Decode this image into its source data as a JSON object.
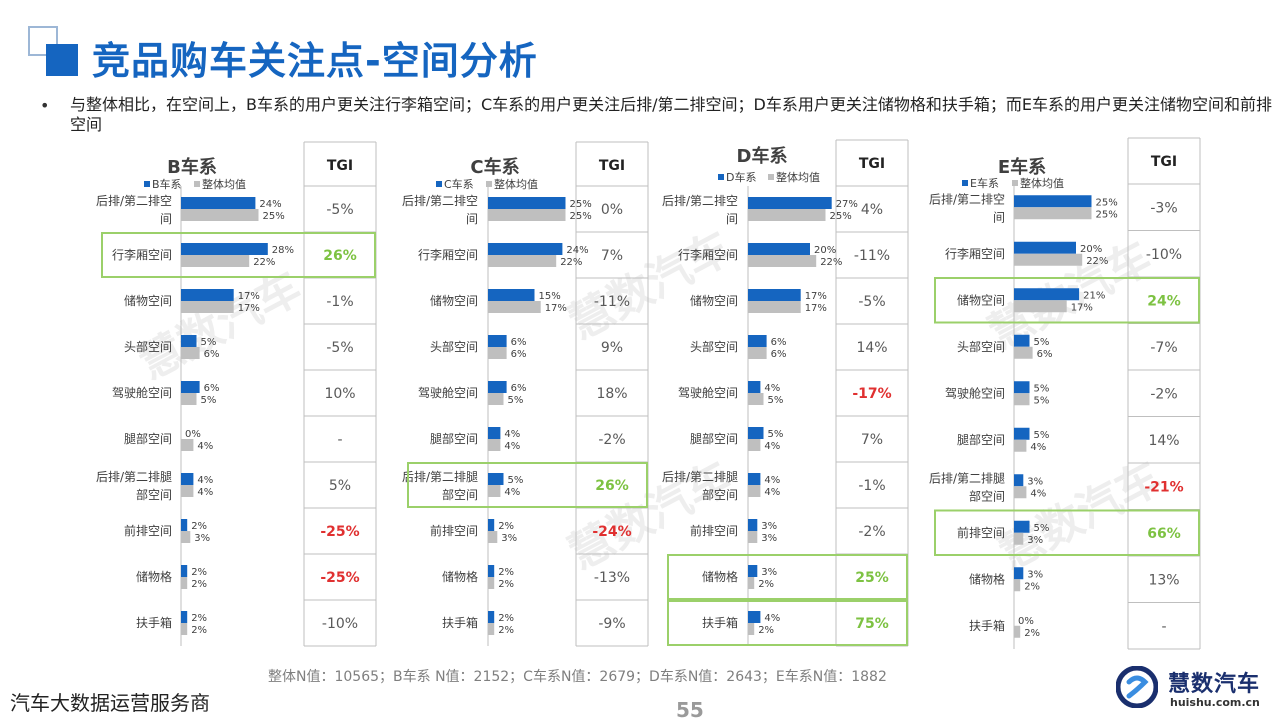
{
  "page": {
    "title": "竞品购车关注点-空间分析",
    "summary": "与整体相比，在空间上，B车系的用户更关注行李箱空间；C车系的用户更关注后排/第二排空间；D车系用户更关注储物格和扶手箱；而E车系的用户更关注储物空间和前排空间",
    "footnote": "整体N值：10565；B车系 N值：2152；C车系N值：2679；D车系N值：2643；E车系N值：1882",
    "company_tagline": "汽车大数据运营服务商",
    "page_number": "55",
    "logo_name": "慧数汽车",
    "logo_url": "huishu.com.cn",
    "watermark": "慧数汽车"
  },
  "colors": {
    "series_bar": "#1565c0",
    "average_bar": "#bfbfbf",
    "tgi_positive": "#7dc242",
    "tgi_negative": "#e03030",
    "tgi_neutral": "#595959",
    "highlight_border": "#9bd06a"
  },
  "chart_data": [
    {
      "type": "bar",
      "title": "B车系",
      "tgi_header": "TGI",
      "categories": [
        "后排/第二排空间",
        "行李厢空间",
        "储物空间",
        "头部空间",
        "驾驶舱空间",
        "腿部空间",
        "后排/第二排腿部空间",
        "前排空间",
        "储物格",
        "扶手箱"
      ],
      "series": [
        {
          "name": "B车系",
          "values": [
            24,
            28,
            17,
            5,
            6,
            0,
            4,
            2,
            2,
            2
          ]
        },
        {
          "name": "整体均值",
          "values": [
            25,
            22,
            17,
            6,
            5,
            4,
            4,
            3,
            2,
            2
          ]
        }
      ],
      "tgi": [
        "-5%",
        "26%",
        "-1%",
        "-5%",
        "10%",
        "-",
        "5%",
        "-25%",
        "-25%",
        "-10%"
      ],
      "highlighted": [
        1
      ]
    },
    {
      "type": "bar",
      "title": "C车系",
      "tgi_header": "TGI",
      "categories": [
        "后排/第二排空间",
        "行李厢空间",
        "储物空间",
        "头部空间",
        "驾驶舱空间",
        "腿部空间",
        "后排/第二排腿部空间",
        "前排空间",
        "储物格",
        "扶手箱"
      ],
      "series": [
        {
          "name": "C车系",
          "values": [
            25,
            24,
            15,
            6,
            6,
            4,
            5,
            2,
            2,
            2
          ]
        },
        {
          "name": "整体均值",
          "values": [
            25,
            22,
            17,
            6,
            5,
            4,
            4,
            3,
            2,
            2
          ]
        }
      ],
      "tgi": [
        "0%",
        "7%",
        "-11%",
        "9%",
        "18%",
        "-2%",
        "26%",
        "-24%",
        "-13%",
        "-9%"
      ],
      "highlighted": [
        6
      ]
    },
    {
      "type": "bar",
      "title": "D车系",
      "tgi_header": "TGI",
      "categories": [
        "后排/第二排空间",
        "行李厢空间",
        "储物空间",
        "头部空间",
        "驾驶舱空间",
        "腿部空间",
        "后排/第二排腿部空间",
        "前排空间",
        "储物格",
        "扶手箱"
      ],
      "series": [
        {
          "name": "D车系",
          "values": [
            27,
            20,
            17,
            6,
            4,
            5,
            4,
            3,
            3,
            4
          ]
        },
        {
          "name": "整体均值",
          "values": [
            25,
            22,
            17,
            6,
            5,
            4,
            4,
            3,
            2,
            2
          ]
        }
      ],
      "tgi": [
        "4%",
        "-11%",
        "-5%",
        "14%",
        "-17%",
        "7%",
        "-1%",
        "-2%",
        "25%",
        "75%"
      ],
      "highlighted": [
        8,
        9
      ]
    },
    {
      "type": "bar",
      "title": "E车系",
      "tgi_header": "TGI",
      "categories": [
        "后排/第二排空间",
        "行李厢空间",
        "储物空间",
        "头部空间",
        "驾驶舱空间",
        "腿部空间",
        "后排/第二排腿部空间",
        "前排空间",
        "储物格",
        "扶手箱"
      ],
      "series": [
        {
          "name": "E车系",
          "values": [
            25,
            20,
            21,
            5,
            5,
            5,
            3,
            5,
            3,
            0
          ]
        },
        {
          "name": "整体均值",
          "values": [
            25,
            22,
            17,
            6,
            5,
            4,
            4,
            3,
            2,
            2
          ]
        }
      ],
      "tgi": [
        "-3%",
        "-10%",
        "24%",
        "-7%",
        "-2%",
        "14%",
        "-21%",
        "66%",
        "13%",
        "-"
      ],
      "highlighted": [
        2,
        7
      ]
    }
  ]
}
